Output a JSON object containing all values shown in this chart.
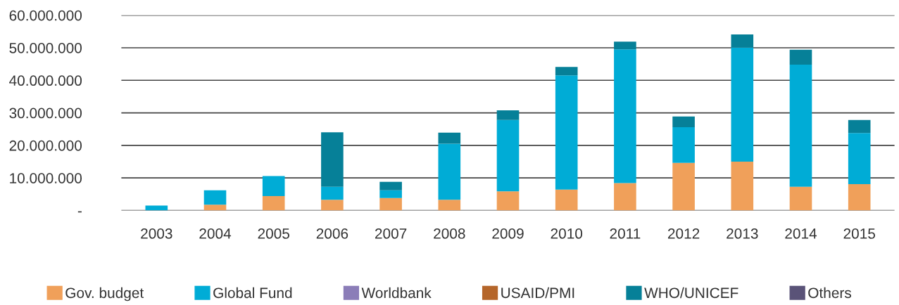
{
  "chart_data": {
    "type": "bar",
    "stacked": true,
    "categories": [
      "2003",
      "2004",
      "2005",
      "2006",
      "2007",
      "2008",
      "2009",
      "2010",
      "2011",
      "2012",
      "2013",
      "2014",
      "2015"
    ],
    "series": [
      {
        "name": "Gov. budget",
        "color": "#f0a05a",
        "values": [
          0,
          1800000,
          4400000,
          3300000,
          3800000,
          3300000,
          5900000,
          6400000,
          8400000,
          14600000,
          15000000,
          7300000,
          8100000
        ]
      },
      {
        "name": "Global Fund",
        "color": "#00acd6",
        "values": [
          1500000,
          4400000,
          6200000,
          4000000,
          2400000,
          17200000,
          21900000,
          35100000,
          41100000,
          11000000,
          35100000,
          37500000,
          15700000
        ]
      },
      {
        "name": "Worldbank",
        "color": "#8b7db8",
        "values": [
          0,
          0,
          0,
          0,
          0,
          0,
          0,
          0,
          0,
          0,
          0,
          0,
          0
        ]
      },
      {
        "name": "USAID/PMI",
        "color": "#b5662a",
        "values": [
          0,
          0,
          0,
          0,
          0,
          0,
          0,
          0,
          0,
          0,
          0,
          0,
          0
        ]
      },
      {
        "name": "WHO/UNICEF",
        "color": "#068098",
        "values": [
          0,
          0,
          0,
          16700000,
          2600000,
          3400000,
          3000000,
          2600000,
          2400000,
          3300000,
          4000000,
          4600000,
          4000000
        ]
      },
      {
        "name": "Others",
        "color": "#5a5378",
        "values": [
          0,
          0,
          0,
          0,
          0,
          0,
          0,
          0,
          0,
          0,
          0,
          0,
          0
        ]
      }
    ],
    "ylim": [
      0,
      60000000
    ],
    "yticks": [
      {
        "value": 0,
        "label": "-"
      },
      {
        "value": 10000000,
        "label": "10.000.000"
      },
      {
        "value": 20000000,
        "label": "20.000.000"
      },
      {
        "value": 30000000,
        "label": "30.000.000"
      },
      {
        "value": 40000000,
        "label": "40.000.000"
      },
      {
        "value": 50000000,
        "label": "50.000.000"
      },
      {
        "value": 60000000,
        "label": "60.000.000"
      }
    ],
    "grid": "y",
    "legend": "bottom"
  }
}
